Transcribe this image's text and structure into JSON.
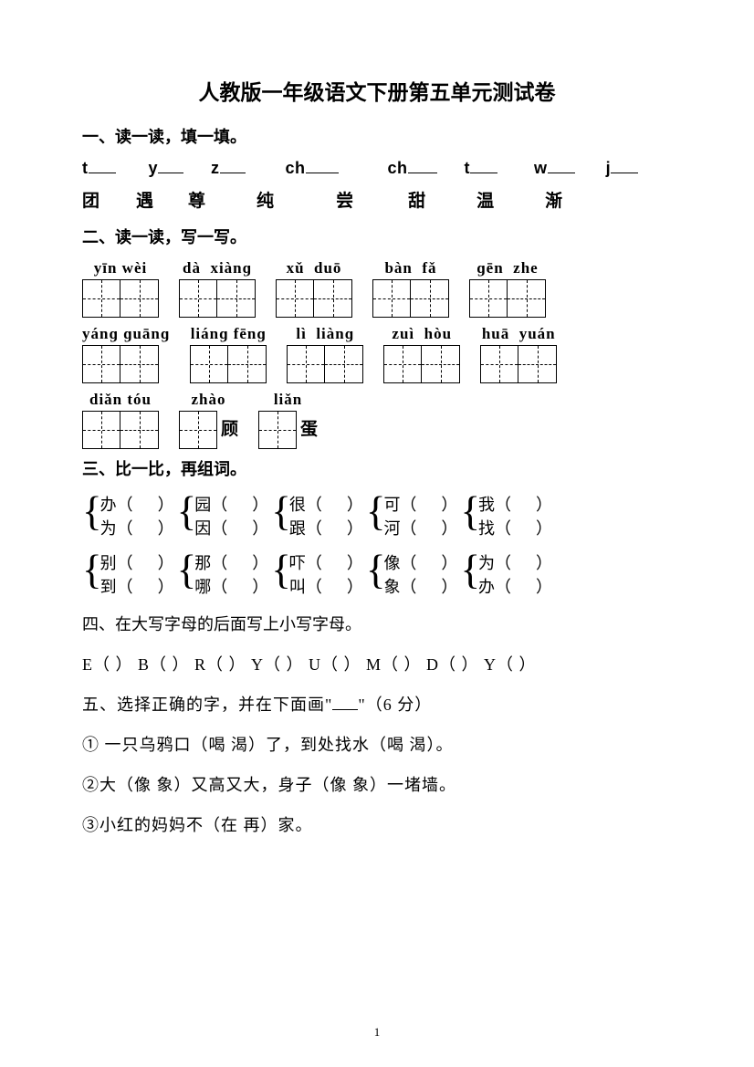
{
  "title": "人教版一年级语文下册第五单元测试卷",
  "page_number": "1",
  "q1": {
    "heading": "一、读一读，填一填。",
    "initials": [
      "t",
      "y",
      "z",
      "ch",
      "ch",
      "t",
      "w",
      "j"
    ],
    "blank_widths": [
      30,
      28,
      28,
      36,
      32,
      30,
      30,
      30
    ],
    "gaps": [
      36,
      30,
      44,
      54,
      30,
      40,
      34
    ],
    "chars": [
      "团",
      "遇",
      "尊",
      "纯",
      "尝",
      "甜",
      "温",
      "渐"
    ],
    "char_gaps": [
      40,
      38,
      56,
      68,
      60,
      56,
      56
    ]
  },
  "q2": {
    "heading": "二、读一读，写一写。",
    "rows": [
      [
        {
          "pinyin": "yīn wèi",
          "boxes": 2
        },
        {
          "pinyin": "dà  xiànɡ",
          "boxes": 2
        },
        {
          "pinyin": "xǔ  duō",
          "boxes": 2
        },
        {
          "pinyin": "bàn  fǎ",
          "boxes": 2
        },
        {
          "pinyin": "ɡēn  zhe",
          "boxes": 2
        }
      ],
      [
        {
          "pinyin": "yánɡ ɡuānɡ",
          "boxes": 2
        },
        {
          "pinyin": "liánɡ fēnɡ",
          "boxes": 2
        },
        {
          "pinyin": "lì  liànɡ",
          "boxes": 2
        },
        {
          "pinyin": "zuì  hòu",
          "boxes": 2
        },
        {
          "pinyin": "huā  yuán",
          "boxes": 2
        }
      ],
      [
        {
          "pinyin": "diǎn tóu",
          "boxes": 2
        },
        {
          "pinyin": "zhào",
          "boxes": 1,
          "after": "顾"
        },
        {
          "pinyin": "liǎn",
          "boxes": 1,
          "after": "蛋"
        }
      ]
    ]
  },
  "q3": {
    "heading": "三、比一比，再组词。",
    "rows": [
      [
        {
          "a": "办",
          "b": "为"
        },
        {
          "a": "园",
          "b": "因"
        },
        {
          "a": "很",
          "b": "跟"
        },
        {
          "a": "可",
          "b": "河"
        },
        {
          "a": "我",
          "b": "找"
        }
      ],
      [
        {
          "a": "别",
          "b": "到"
        },
        {
          "a": "那",
          "b": "哪"
        },
        {
          "a": "吓",
          "b": "叫"
        },
        {
          "a": "像",
          "b": "象"
        },
        {
          "a": "为",
          "b": "办"
        }
      ]
    ]
  },
  "q4": {
    "heading": "四、在大写字母的后面写上小写字母。",
    "letters": [
      "E",
      "B",
      "R",
      "Y",
      "U",
      "M",
      "D",
      "Y"
    ]
  },
  "q5": {
    "heading_pre": "五、选择正确的字，并在下面画\"",
    "heading_post": "\"（6 分）",
    "lines": [
      "① 一只乌鸦口（喝  渴）了，到处找水（喝  渴）。",
      "②大（像  象）又高又大，身子（像  象）一堵墙。",
      "③小红的妈妈不（在  再）家。"
    ]
  }
}
